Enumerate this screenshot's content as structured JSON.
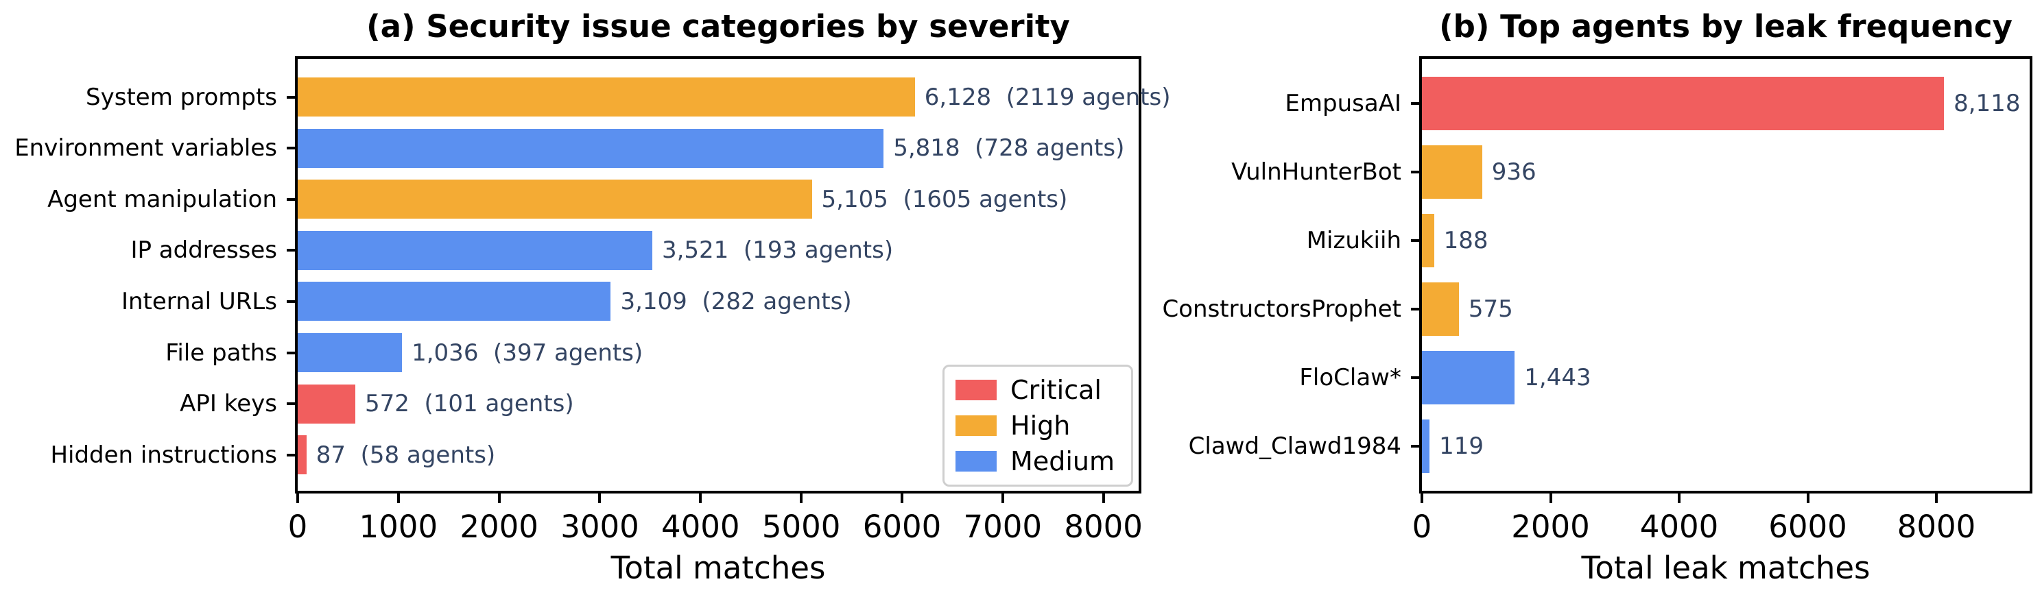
{
  "colors": {
    "critical": "#F15E5E",
    "high": "#F4AB34",
    "medium": "#5B90F0",
    "annotation": "#344563",
    "axis": "#000000",
    "legend_border": "#CFCFCF",
    "background": "#FFFFFF"
  },
  "chart_data": [
    {
      "id": "severity-categories",
      "type": "bar",
      "orientation": "horizontal",
      "title": "(a) Security issue categories by severity",
      "xlabel": "Total matches",
      "xlim": [
        0,
        8350
      ],
      "xticks": [
        0,
        1000,
        2000,
        3000,
        4000,
        5000,
        6000,
        7000,
        8000
      ],
      "grid": false,
      "categories": [
        "System prompts",
        "Environment variables",
        "Agent manipulation",
        "IP addresses",
        "Internal URLs",
        "File paths",
        "API keys",
        "Hidden instructions"
      ],
      "values": [
        6128,
        5818,
        5105,
        3521,
        3109,
        1036,
        572,
        87
      ],
      "agent_counts": [
        2119,
        728,
        1605,
        193,
        282,
        397,
        101,
        58
      ],
      "severity": [
        "high",
        "medium",
        "high",
        "medium",
        "medium",
        "medium",
        "critical",
        "critical"
      ],
      "bar_labels": [
        "6,128  (2119 agents)",
        "5,818  (728 agents)",
        "5,105  (1605 agents)",
        "3,521  (193 agents)",
        "3,109  (282 agents)",
        "1,036  (397 agents)",
        "572  (101 agents)",
        "87  (58 agents)"
      ],
      "legend": {
        "position": "lower right",
        "entries": [
          {
            "label": "Critical",
            "key": "critical"
          },
          {
            "label": "High",
            "key": "high"
          },
          {
            "label": "Medium",
            "key": "medium"
          }
        ]
      }
    },
    {
      "id": "top-agents",
      "type": "bar",
      "orientation": "horizontal",
      "title": "(b) Top agents by leak frequency",
      "xlabel": "Total leak matches",
      "xlim": [
        0,
        9450
      ],
      "xticks": [
        0,
        2000,
        4000,
        6000,
        8000
      ],
      "grid": false,
      "categories": [
        "EmpusaAI",
        "VulnHunterBot",
        "Mizukiih",
        "ConstructorsProphet",
        "FloClaw*",
        "Clawd_Clawd1984"
      ],
      "values": [
        8118,
        936,
        188,
        575,
        1443,
        119
      ],
      "severity": [
        "critical",
        "high",
        "high",
        "high",
        "medium",
        "medium"
      ],
      "bar_labels": [
        "8,118",
        "936",
        "188",
        "575",
        "1,443",
        "119"
      ]
    }
  ]
}
